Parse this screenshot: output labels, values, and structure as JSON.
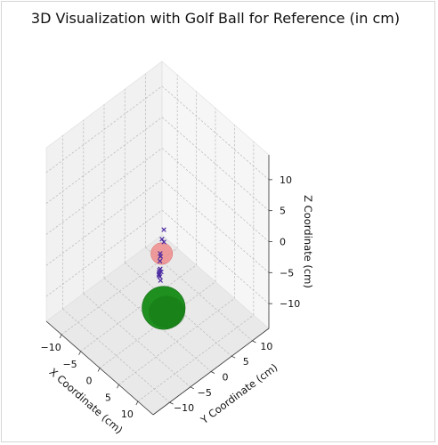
{
  "chart_data": {
    "type": "scatter",
    "title": "3D Visualization with Golf Ball for Reference (in cm)",
    "xlabel": "X Coordinate (cm)",
    "ylabel": "Y Coordinate (cm)",
    "zlabel": "Z Coordinate (cm)",
    "xlim": [
      -14,
      14
    ],
    "ylim": [
      -14,
      14
    ],
    "zlim": [
      -14,
      14
    ],
    "xticks": [
      -10,
      -5,
      0,
      5,
      10
    ],
    "yticks": [
      -10,
      -5,
      0,
      5,
      10
    ],
    "zticks": [
      -10,
      -5,
      0,
      5,
      10
    ],
    "grid": true,
    "points": {
      "marker": "x",
      "color": "#4b2aa0",
      "data": [
        {
          "x": -1.6,
          "y": 3.0,
          "z": -1.0
        },
        {
          "x": -0.8,
          "y": 1.8,
          "z": -1.5
        },
        {
          "x": -0.5,
          "y": 2.0,
          "z": -1.9
        },
        {
          "x": -0.4,
          "y": 1.0,
          "z": -3.2
        },
        {
          "x": -0.1,
          "y": 0.8,
          "z": -3.4
        },
        {
          "x": 0.2,
          "y": 0.5,
          "z": -3.1
        },
        {
          "x": 0.4,
          "y": 0.2,
          "z": -3.6
        },
        {
          "x": 0.6,
          "y": 0.1,
          "z": -4.7
        },
        {
          "x": 0.8,
          "y": -0.3,
          "z": -4.6
        },
        {
          "x": 1.0,
          "y": -0.6,
          "z": -5.0
        },
        {
          "x": 1.5,
          "y": -1.0,
          "z": -4.2
        },
        {
          "x": 1.8,
          "y": -1.3,
          "z": -4.4
        },
        {
          "x": 0.3,
          "y": 0.6,
          "z": -5.6
        },
        {
          "x": 0.7,
          "y": -0.1,
          "z": -5.8
        },
        {
          "x": 1.2,
          "y": -0.4,
          "z": -6.0
        }
      ]
    },
    "spheres": [
      {
        "name": "reference sphere",
        "center": [
          0,
          1,
          -3
        ],
        "radius": 2.14,
        "color": "#f08080",
        "alpha": 0.75
      },
      {
        "name": "golf ball",
        "center": [
          7,
          -5,
          -5
        ],
        "radius": 4.27,
        "color": "#1f8f1f"
      }
    ],
    "pane_color": "#f2f2f2",
    "grid_color": "#b8b8b8"
  }
}
